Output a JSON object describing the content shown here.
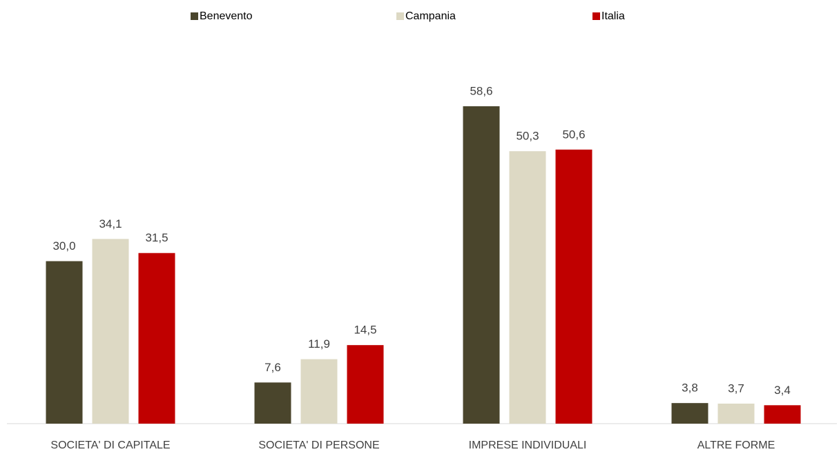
{
  "chart_data": {
    "type": "bar",
    "categories": [
      "SOCIETA' DI CAPITALE",
      "SOCIETA' DI PERSONE",
      "IMPRESE INDIVIDUALI",
      "ALTRE FORME"
    ],
    "series": [
      {
        "name": "Benevento",
        "color": "#4a452c",
        "values": [
          30.0,
          7.6,
          58.6,
          3.8
        ],
        "value_labels": [
          "30,0",
          "7,6",
          "58,6",
          "3,8"
        ]
      },
      {
        "name": "Campania",
        "color": "#ddd9c4",
        "values": [
          34.1,
          11.9,
          50.3,
          3.7
        ],
        "value_labels": [
          "34,1",
          "11,9",
          "50,3",
          "3,7"
        ]
      },
      {
        "name": "Italia",
        "color": "#c00000",
        "values": [
          31.5,
          14.5,
          50.6,
          3.4
        ],
        "value_labels": [
          "31,5",
          "14,5",
          "50,6",
          "3,4"
        ]
      }
    ],
    "legend": "top"
  }
}
